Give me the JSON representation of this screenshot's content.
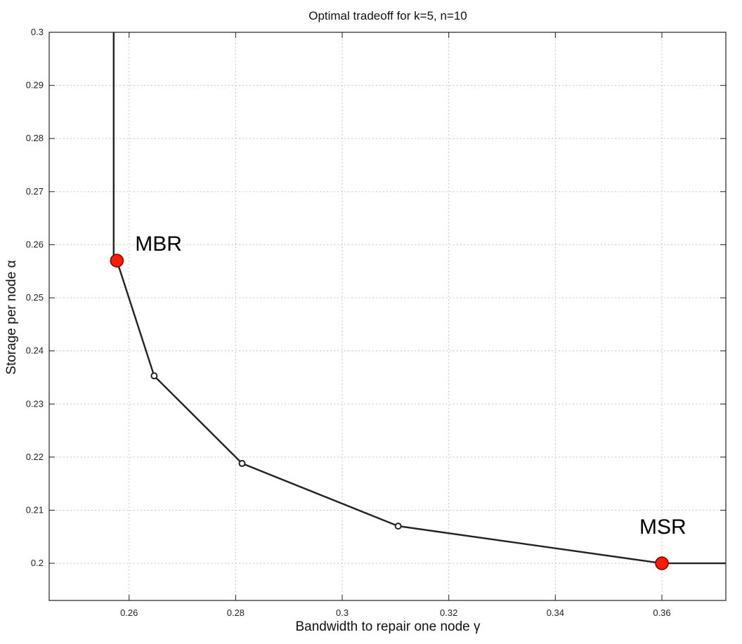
{
  "colors": {
    "curve": "#222222",
    "highlight_marker": "#ff1a00",
    "grid": "#c8c8c8"
  },
  "chart_data": {
    "type": "line",
    "title": "Optimal tradeoff for k=5, n=10",
    "xlabel": "Bandwidth to repair one node γ",
    "ylabel": "Storage per node α",
    "xlim": [
      0.245,
      0.372
    ],
    "ylim": [
      0.193,
      0.3
    ],
    "x_ticks": [
      0.26,
      0.28,
      0.3,
      0.32,
      0.34,
      0.36
    ],
    "x_tick_labels": [
      "0.26",
      "0.28",
      "0.3",
      "0.32",
      "0.34",
      "0.36"
    ],
    "y_ticks": [
      0.2,
      0.21,
      0.22,
      0.23,
      0.24,
      0.25,
      0.26,
      0.27,
      0.28,
      0.29,
      0.3
    ],
    "y_tick_labels": [
      "0.2",
      "0.21",
      "0.22",
      "0.23",
      "0.24",
      "0.25",
      "0.26",
      "0.27",
      "0.28",
      "0.29",
      "0.3"
    ],
    "grid": true,
    "series": [
      {
        "x": [
          0.2571,
          0.2571,
          0.2577,
          0.2647,
          0.2812,
          0.3105,
          0.36,
          0.372
        ],
        "y": [
          0.3,
          0.257,
          0.257,
          0.2353,
          0.2188,
          0.207,
          0.2,
          0.2
        ]
      }
    ],
    "small_markers": [
      {
        "x": 0.2647,
        "y": 0.2353
      },
      {
        "x": 0.2812,
        "y": 0.2188
      },
      {
        "x": 0.3105,
        "y": 0.207
      }
    ],
    "highlight_points": [
      {
        "label": "MBR",
        "x": 0.2577,
        "y": 0.257
      },
      {
        "label": "MSR",
        "x": 0.36,
        "y": 0.2
      }
    ]
  }
}
